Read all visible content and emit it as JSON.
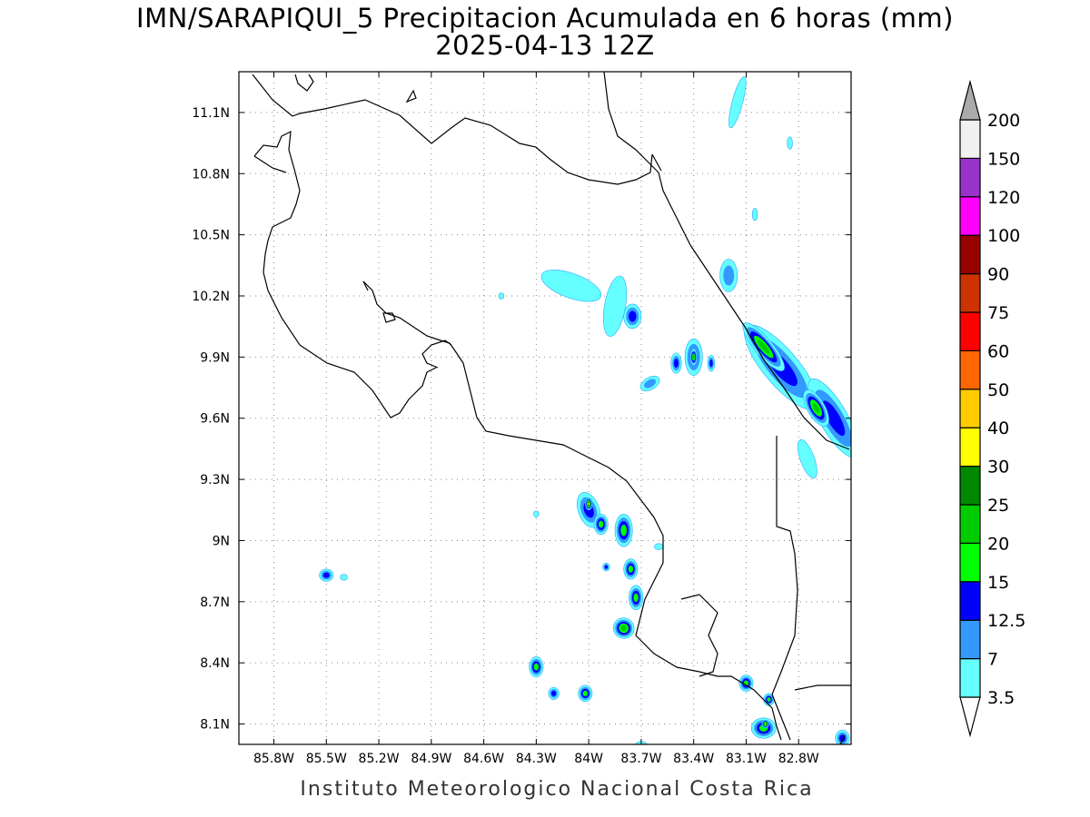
{
  "title": {
    "line1": "IMN/SARAPIQUI_5 Precipitacion Acumulada en 6 horas (mm)",
    "line2": "2025-04-13 12Z"
  },
  "footer": "Instituto Meteorologico Nacional Costa Rica",
  "map": {
    "lon_range": [
      -86.0,
      -82.5
    ],
    "lat_range": [
      8.0,
      11.3
    ],
    "lon_ticks": [
      {
        "value": -85.8,
        "label": "85.8W"
      },
      {
        "value": -85.5,
        "label": "85.5W"
      },
      {
        "value": -85.2,
        "label": "85.2W"
      },
      {
        "value": -84.9,
        "label": "84.9W"
      },
      {
        "value": -84.6,
        "label": "84.6W"
      },
      {
        "value": -84.3,
        "label": "84.3W"
      },
      {
        "value": -84.0,
        "label": "84W"
      },
      {
        "value": -83.7,
        "label": "83.7W"
      },
      {
        "value": -83.4,
        "label": "83.4W"
      },
      {
        "value": -83.1,
        "label": "83.1W"
      },
      {
        "value": -82.8,
        "label": "82.8W"
      }
    ],
    "lat_ticks": [
      {
        "value": 11.1,
        "label": "11.1N"
      },
      {
        "value": 10.8,
        "label": "10.8N"
      },
      {
        "value": 10.5,
        "label": "10.5N"
      },
      {
        "value": 10.2,
        "label": "10.2N"
      },
      {
        "value": 9.9,
        "label": "9.9N"
      },
      {
        "value": 9.6,
        "label": "9.6N"
      },
      {
        "value": 9.3,
        "label": "9.3N"
      },
      {
        "value": 9.0,
        "label": "9N"
      },
      {
        "value": 8.7,
        "label": "8.7N"
      },
      {
        "value": 8.4,
        "label": "8.4N"
      },
      {
        "value": 8.1,
        "label": "8.1N"
      }
    ],
    "grid": true,
    "precip_cells": [
      {
        "lon": -82.9,
        "lat": 9.85,
        "rx": 0.1,
        "ry": 0.26,
        "rot": -40,
        "level": 3
      },
      {
        "lon": -82.6,
        "lat": 9.6,
        "rx": 0.08,
        "ry": 0.22,
        "rot": -30,
        "level": 3
      },
      {
        "lon": -83.0,
        "lat": 9.95,
        "rx": 0.05,
        "ry": 0.15,
        "rot": -40,
        "level": 5
      },
      {
        "lon": -82.7,
        "lat": 9.65,
        "rx": 0.05,
        "ry": 0.1,
        "rot": -30,
        "level": 5
      },
      {
        "lon": -83.4,
        "lat": 9.9,
        "rx": 0.05,
        "ry": 0.09,
        "rot": 0,
        "level": 3
      },
      {
        "lon": -83.4,
        "lat": 9.9,
        "rx": 0.02,
        "ry": 0.04,
        "rot": 0,
        "level": 5
      },
      {
        "lon": -83.75,
        "lat": 10.1,
        "rx": 0.05,
        "ry": 0.06,
        "rot": 0,
        "level": 3
      },
      {
        "lon": -84.1,
        "lat": 10.25,
        "rx": 0.18,
        "ry": 0.06,
        "rot": 20,
        "level": 1
      },
      {
        "lon": -83.85,
        "lat": 10.15,
        "rx": 0.06,
        "ry": 0.15,
        "rot": 10,
        "level": 1
      },
      {
        "lon": -84.0,
        "lat": 9.15,
        "rx": 0.06,
        "ry": 0.09,
        "rot": -20,
        "level": 3
      },
      {
        "lon": -84.0,
        "lat": 9.18,
        "rx": 0.02,
        "ry": 0.03,
        "rot": 0,
        "level": 7
      },
      {
        "lon": -83.93,
        "lat": 9.08,
        "rx": 0.04,
        "ry": 0.05,
        "rot": 0,
        "level": 4
      },
      {
        "lon": -83.8,
        "lat": 9.05,
        "rx": 0.05,
        "ry": 0.08,
        "rot": 0,
        "level": 4
      },
      {
        "lon": -83.76,
        "lat": 8.86,
        "rx": 0.04,
        "ry": 0.05,
        "rot": 0,
        "level": 4
      },
      {
        "lon": -83.73,
        "lat": 8.72,
        "rx": 0.04,
        "ry": 0.06,
        "rot": 0,
        "level": 4
      },
      {
        "lon": -83.8,
        "lat": 8.57,
        "rx": 0.06,
        "ry": 0.05,
        "rot": 30,
        "level": 5
      },
      {
        "lon": -84.3,
        "lat": 8.38,
        "rx": 0.04,
        "ry": 0.05,
        "rot": 0,
        "level": 4
      },
      {
        "lon": -84.2,
        "lat": 8.25,
        "rx": 0.03,
        "ry": 0.03,
        "rot": 0,
        "level": 3
      },
      {
        "lon": -84.02,
        "lat": 8.25,
        "rx": 0.04,
        "ry": 0.04,
        "rot": 0,
        "level": 4
      },
      {
        "lon": -83.1,
        "lat": 8.3,
        "rx": 0.04,
        "ry": 0.04,
        "rot": 0,
        "level": 4
      },
      {
        "lon": -82.97,
        "lat": 8.22,
        "rx": 0.03,
        "ry": 0.03,
        "rot": 0,
        "level": 4
      },
      {
        "lon": -83.0,
        "lat": 8.08,
        "rx": 0.07,
        "ry": 0.05,
        "rot": 0,
        "level": 4
      },
      {
        "lon": -82.99,
        "lat": 8.1,
        "rx": 0.02,
        "ry": 0.02,
        "rot": 0,
        "level": 7
      },
      {
        "lon": -82.55,
        "lat": 8.03,
        "rx": 0.04,
        "ry": 0.04,
        "rot": 0,
        "level": 3
      },
      {
        "lon": -85.5,
        "lat": 8.83,
        "rx": 0.04,
        "ry": 0.03,
        "rot": 0,
        "level": 3
      },
      {
        "lon": -85.4,
        "lat": 8.82,
        "rx": 0.02,
        "ry": 0.015,
        "rot": 0,
        "level": 1
      },
      {
        "lon": -83.15,
        "lat": 11.15,
        "rx": 0.03,
        "ry": 0.13,
        "rot": 15,
        "level": 1
      },
      {
        "lon": -82.85,
        "lat": 10.95,
        "rx": 0.015,
        "ry": 0.03,
        "rot": 0,
        "level": 1
      },
      {
        "lon": -83.05,
        "lat": 10.6,
        "rx": 0.015,
        "ry": 0.03,
        "rot": 0,
        "level": 1
      },
      {
        "lon": -83.65,
        "lat": 9.77,
        "rx": 0.06,
        "ry": 0.03,
        "rot": -30,
        "level": 2
      },
      {
        "lon": -83.5,
        "lat": 9.87,
        "rx": 0.03,
        "ry": 0.05,
        "rot": 0,
        "level": 3
      },
      {
        "lon": -83.3,
        "lat": 9.87,
        "rx": 0.02,
        "ry": 0.04,
        "rot": 0,
        "level": 3
      },
      {
        "lon": -83.2,
        "lat": 10.3,
        "rx": 0.05,
        "ry": 0.08,
        "rot": 0,
        "level": 2
      },
      {
        "lon": -84.5,
        "lat": 10.2,
        "rx": 0.015,
        "ry": 0.015,
        "rot": 0,
        "level": 1
      },
      {
        "lon": -84.3,
        "lat": 9.13,
        "rx": 0.015,
        "ry": 0.015,
        "rot": 0,
        "level": 1
      },
      {
        "lon": -83.6,
        "lat": 8.97,
        "rx": 0.025,
        "ry": 0.015,
        "rot": 0,
        "level": 1
      },
      {
        "lon": -82.75,
        "lat": 9.4,
        "rx": 0.04,
        "ry": 0.1,
        "rot": -20,
        "level": 1
      },
      {
        "lon": -83.9,
        "lat": 8.87,
        "rx": 0.02,
        "ry": 0.02,
        "rot": 0,
        "level": 3
      },
      {
        "lon": -83.7,
        "lat": 8.0,
        "rx": 0.03,
        "ry": 0.015,
        "rot": 0,
        "level": 1
      }
    ]
  },
  "colorbar": {
    "levels": [
      {
        "label": "3.5",
        "color": "#ffffff"
      },
      {
        "label": "7",
        "color": "#66ffff"
      },
      {
        "label": "12.5",
        "color": "#3399ff"
      },
      {
        "label": "15",
        "color": "#0000ff"
      },
      {
        "label": "20",
        "color": "#00ff00"
      },
      {
        "label": "25",
        "color": "#00cc00"
      },
      {
        "label": "30",
        "color": "#008800"
      },
      {
        "label": "40",
        "color": "#ffff00"
      },
      {
        "label": "50",
        "color": "#ffcc00"
      },
      {
        "label": "60",
        "color": "#ff6600"
      },
      {
        "label": "75",
        "color": "#ff0000"
      },
      {
        "label": "90",
        "color": "#cc3300"
      },
      {
        "label": "100",
        "color": "#990000"
      },
      {
        "label": "120",
        "color": "#ff00ff"
      },
      {
        "label": "150",
        "color": "#9933cc"
      },
      {
        "label": "200",
        "color": "#f0f0f0"
      }
    ],
    "top_color": "#aaaaaa"
  }
}
